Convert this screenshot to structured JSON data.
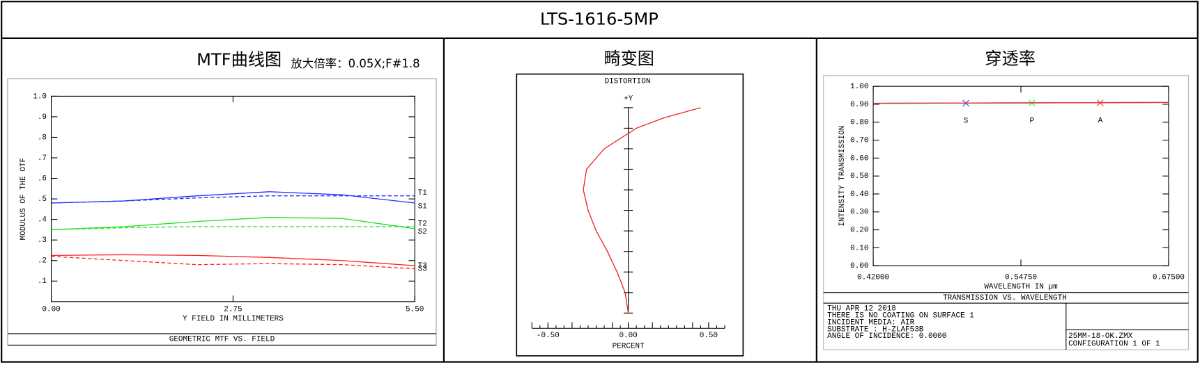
{
  "header": {
    "title": "LTS-1616-5MP"
  },
  "panels": [
    {
      "title": "MTF曲线图",
      "subtitle": "放大倍率：0.05X;F#1.8"
    },
    {
      "title": "畸变图"
    },
    {
      "title": "穿透率"
    }
  ],
  "chart_data": [
    {
      "type": "line",
      "title": "GEOMETRIC MTF VS. FIELD",
      "xlabel": "Y FIELD IN MILLIMETERS",
      "ylabel": "MODULUS OF THE OTF",
      "x": [
        0,
        1.1,
        2.2,
        3.3,
        4.4,
        5.5
      ],
      "xlim": [
        0,
        5.5
      ],
      "ylim": [
        0,
        1
      ],
      "xticks": [
        {
          "value": 0,
          "label": "0.00"
        },
        {
          "value": 2.75,
          "label": "2.75"
        },
        {
          "value": 5.5,
          "label": "5.50"
        }
      ],
      "yticks": [
        {
          "value": 0.1,
          "label": ".1"
        },
        {
          "value": 0.2,
          "label": ".2"
        },
        {
          "value": 0.3,
          "label": ".3"
        },
        {
          "value": 0.4,
          "label": ".4"
        },
        {
          "value": 0.5,
          "label": ".5"
        },
        {
          "value": 0.6,
          "label": ".6"
        },
        {
          "value": 0.7,
          "label": ".7"
        },
        {
          "value": 0.8,
          "label": ".8"
        },
        {
          "value": 0.9,
          "label": ".9"
        },
        {
          "value": 1,
          "label": "1.0"
        }
      ],
      "series": [
        {
          "name": "T1",
          "color": "#2030ff",
          "dashed": true,
          "values": [
            0.48,
            0.49,
            0.505,
            0.515,
            0.515,
            0.515
          ]
        },
        {
          "name": "S1",
          "color": "#2030ff",
          "dashed": false,
          "values": [
            0.48,
            0.49,
            0.515,
            0.535,
            0.52,
            0.48
          ]
        },
        {
          "name": "S2",
          "color": "#22dd22",
          "dashed": false,
          "values": [
            0.35,
            0.365,
            0.39,
            0.41,
            0.405,
            0.355
          ]
        },
        {
          "name": "T2",
          "color": "#22dd22",
          "dashed": true,
          "values": [
            0.35,
            0.36,
            0.365,
            0.365,
            0.365,
            0.365
          ]
        },
        {
          "name": "S3",
          "color": "#ff2020",
          "dashed": false,
          "values": [
            0.225,
            0.228,
            0.225,
            0.215,
            0.2,
            0.175
          ]
        },
        {
          "name": "T3",
          "color": "#ff2020",
          "dashed": true,
          "values": [
            0.22,
            0.2,
            0.18,
            0.185,
            0.18,
            0.16
          ]
        }
      ]
    },
    {
      "type": "line",
      "title": "DISTORTION",
      "xlabel": "PERCENT",
      "ylabel": "+Y",
      "xlim": [
        -0.6,
        0.6
      ],
      "ylim": [
        0,
        1
      ],
      "xticks": [
        {
          "value": -0.5,
          "label": "-0.50"
        },
        {
          "value": 0,
          "label": "0.00"
        },
        {
          "value": 0.5,
          "label": "0.50"
        }
      ],
      "series": [
        {
          "color": "#ee2020",
          "dashed": false,
          "x": [
            0,
            -0.02,
            -0.07,
            -0.13,
            -0.2,
            -0.25,
            -0.28,
            -0.26,
            -0.15,
            0.05,
            0.22,
            0.45
          ],
          "values": [
            0,
            0.1,
            0.2,
            0.3,
            0.4,
            0.5,
            0.6,
            0.7,
            0.8,
            0.9,
            0.95,
            1
          ]
        }
      ]
    },
    {
      "type": "line",
      "title": "TRANSMISSION VS. WAVELENGTH",
      "xlabel": "WAVELENGTH IN µm",
      "ylabel": "INTENSITY TRANSMISSION",
      "x": [
        0.42,
        0.675
      ],
      "xlim": [
        0.42,
        0.675
      ],
      "ylim": [
        0,
        1
      ],
      "xticks": [
        {
          "value": 0.42,
          "label": "0.42000"
        },
        {
          "value": 0.5475,
          "label": "0.54750"
        },
        {
          "value": 0.675,
          "label": "0.67500"
        }
      ],
      "yticks": [
        {
          "value": 0,
          "label": "0.00"
        },
        {
          "value": 0.1,
          "label": "0.10"
        },
        {
          "value": 0.2,
          "label": "0.20"
        },
        {
          "value": 0.3,
          "label": "0.30"
        },
        {
          "value": 0.4,
          "label": "0.40"
        },
        {
          "value": 0.5,
          "label": "0.50"
        },
        {
          "value": 0.6,
          "label": "0.60"
        },
        {
          "value": 0.7,
          "label": "0.70"
        },
        {
          "value": 0.8,
          "label": "0.80"
        },
        {
          "value": 0.9,
          "label": "0.90"
        },
        {
          "value": 1,
          "label": "1.00"
        }
      ],
      "series": [
        {
          "name": "S",
          "color": "#3030ee",
          "dashed": false,
          "values": [
            0.905,
            0.91
          ],
          "marker": {
            "x": 0.5,
            "y": 0.906
          }
        },
        {
          "name": "P",
          "color": "#30dd30",
          "dashed": false,
          "values": [
            0.905,
            0.91
          ],
          "marker": {
            "x": 0.557,
            "y": 0.907
          }
        },
        {
          "name": "A",
          "color": "#ee3030",
          "dashed": false,
          "values": [
            0.905,
            0.91
          ],
          "marker": {
            "x": 0.616,
            "y": 0.908
          }
        }
      ],
      "notes": [
        "THU APR 12 2018",
        "THERE IS NO COATING ON SURFACE 1",
        "INCIDENT MEDIA: AIR",
        "SUBSTRATE     : H-ZLAF53B",
        "ANGLE OF INCIDENCE: 0.0000"
      ],
      "file_info": [
        "25MM-18-OK.ZMX",
        "CONFIGURATION 1 OF 1"
      ]
    }
  ]
}
